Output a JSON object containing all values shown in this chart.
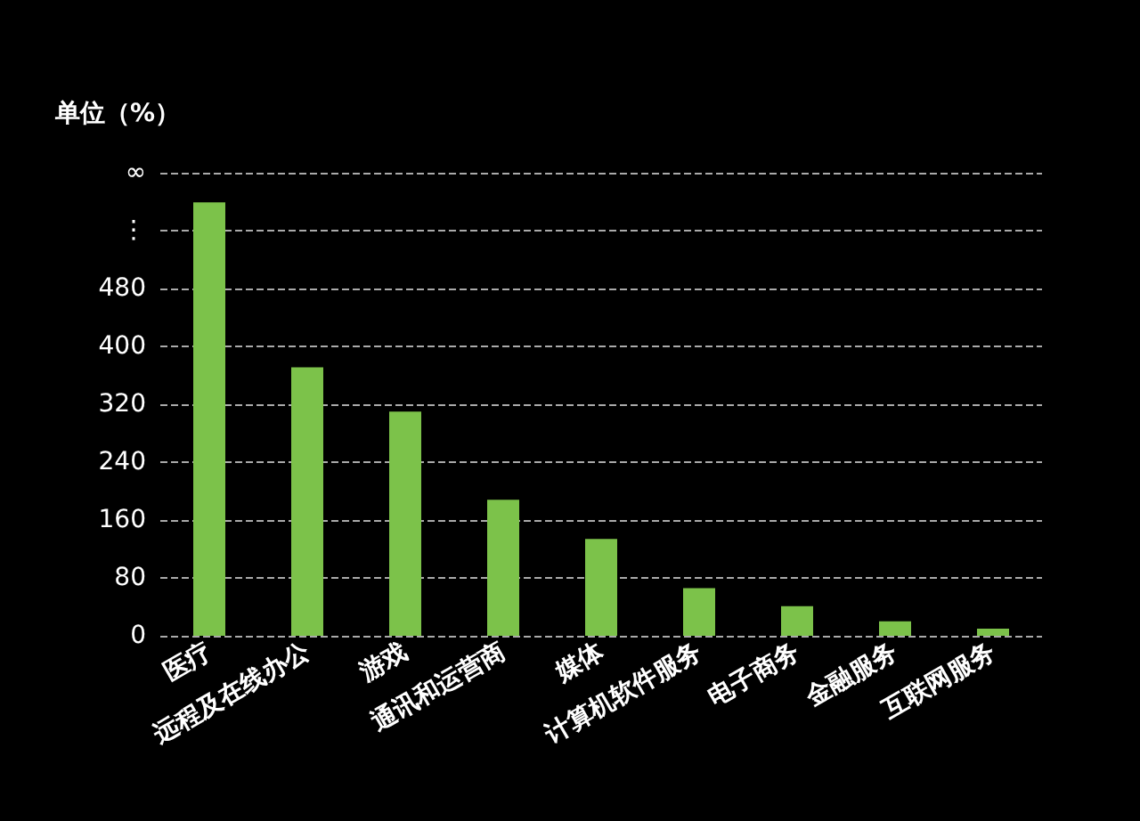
{
  "chart_data": {
    "type": "bar",
    "ylabel": "单位（%）",
    "categories": [
      "医疗",
      "远程及在线办公",
      "游戏",
      "通讯和运营商",
      "媒体",
      "计算机软件服务",
      "电子商务",
      "金融服务",
      "互联网服务"
    ],
    "values": [
      599,
      371,
      310,
      188,
      134,
      66,
      41,
      20,
      10
    ],
    "color": "#7cc24a",
    "ylim": [
      0,
      640
    ],
    "yticks": [
      0,
      80,
      160,
      240,
      320,
      400,
      480,
      {
        "value": 560,
        "label": "⋮"
      },
      {
        "value": 640,
        "label": "∞"
      }
    ],
    "grid": "y"
  }
}
